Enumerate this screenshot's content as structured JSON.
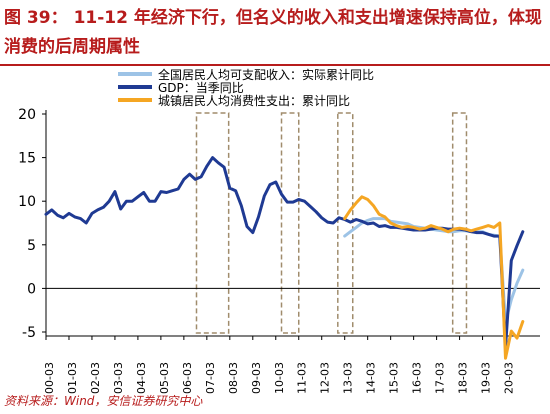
{
  "header": {
    "figure_label": "图 39：",
    "title": "11-12 年经济下行，但名义的收入和支出增速保持高位，体现消费的后周期属性"
  },
  "source": "资料来源：Wind，安信证券研究中心",
  "colors": {
    "income": "#9dc3e6",
    "gdp": "#1f3a93",
    "consumption": "#f5a623",
    "highlight_box": "#a08c6c",
    "title": "#b71c1c"
  },
  "chart_data": {
    "type": "line",
    "title": "",
    "xlabel": "",
    "ylabel": "",
    "ylim": [
      -5,
      20
    ],
    "yticks": [
      -5,
      0,
      5,
      10,
      15,
      20
    ],
    "xlim": [
      2000.0,
      2021.5
    ],
    "xticks": [
      "00-03",
      "01-03",
      "02-03",
      "03-03",
      "04-03",
      "05-03",
      "06-03",
      "07-03",
      "08-03",
      "09-03",
      "10-03",
      "11-03",
      "12-03",
      "13-03",
      "14-03",
      "15-03",
      "16-03",
      "17-03",
      "18-03",
      "19-03",
      "20-03"
    ],
    "grid": false,
    "legend_position": "top",
    "highlight_periods": [
      [
        2006.55,
        2007.95
      ],
      [
        2010.25,
        2011.0
      ],
      [
        2012.7,
        2013.35
      ],
      [
        2017.7,
        2018.3
      ]
    ],
    "series": [
      {
        "name": "全国居民人均可支配收入：实际累计同比",
        "color": "#9dc3e6",
        "points": [
          [
            2013.0,
            6.0
          ],
          [
            2013.25,
            6.5
          ],
          [
            2013.5,
            7.0
          ],
          [
            2013.75,
            7.5
          ],
          [
            2014.0,
            7.8
          ],
          [
            2014.25,
            8.0
          ],
          [
            2014.5,
            8.0
          ],
          [
            2014.75,
            8.0
          ],
          [
            2015.0,
            7.7
          ],
          [
            2015.25,
            7.6
          ],
          [
            2015.5,
            7.5
          ],
          [
            2015.75,
            7.4
          ],
          [
            2016.0,
            7.1
          ],
          [
            2016.25,
            7.0
          ],
          [
            2016.5,
            6.9
          ],
          [
            2016.75,
            6.8
          ],
          [
            2017.0,
            6.7
          ],
          [
            2017.25,
            6.6
          ],
          [
            2017.5,
            6.5
          ],
          [
            2017.75,
            6.5
          ],
          [
            2018.0,
            6.6
          ],
          [
            2018.25,
            6.6
          ],
          [
            2018.5,
            6.5
          ],
          [
            2018.75,
            6.5
          ],
          [
            2019.0,
            6.5
          ],
          [
            2019.25,
            6.2
          ],
          [
            2019.5,
            6.1
          ],
          [
            2019.75,
            6.0
          ],
          [
            2020.0,
            -3.9
          ],
          [
            2020.25,
            -1.3
          ],
          [
            2020.5,
            0.6
          ],
          [
            2020.75,
            2.1
          ]
        ]
      },
      {
        "name": "GDP：当季同比",
        "color": "#1f3a93",
        "points": [
          [
            2000.0,
            8.5
          ],
          [
            2000.25,
            9.0
          ],
          [
            2000.5,
            8.4
          ],
          [
            2000.75,
            8.1
          ],
          [
            2001.0,
            8.6
          ],
          [
            2001.25,
            8.2
          ],
          [
            2001.5,
            8.0
          ],
          [
            2001.75,
            7.5
          ],
          [
            2002.0,
            8.6
          ],
          [
            2002.25,
            9.0
          ],
          [
            2002.5,
            9.3
          ],
          [
            2002.75,
            10.0
          ],
          [
            2003.0,
            11.1
          ],
          [
            2003.25,
            9.1
          ],
          [
            2003.5,
            10.0
          ],
          [
            2003.75,
            10.0
          ],
          [
            2004.0,
            10.5
          ],
          [
            2004.25,
            11.0
          ],
          [
            2004.5,
            10.0
          ],
          [
            2004.75,
            10.0
          ],
          [
            2005.0,
            11.1
          ],
          [
            2005.25,
            11.0
          ],
          [
            2005.5,
            11.2
          ],
          [
            2005.75,
            11.4
          ],
          [
            2006.0,
            12.5
          ],
          [
            2006.25,
            13.1
          ],
          [
            2006.5,
            12.5
          ],
          [
            2006.75,
            12.8
          ],
          [
            2007.0,
            14.0
          ],
          [
            2007.25,
            15.0
          ],
          [
            2007.5,
            14.4
          ],
          [
            2007.75,
            13.9
          ],
          [
            2008.0,
            11.5
          ],
          [
            2008.25,
            11.2
          ],
          [
            2008.5,
            9.5
          ],
          [
            2008.75,
            7.1
          ],
          [
            2009.0,
            6.4
          ],
          [
            2009.25,
            8.2
          ],
          [
            2009.5,
            10.6
          ],
          [
            2009.75,
            11.9
          ],
          [
            2010.0,
            12.2
          ],
          [
            2010.25,
            10.8
          ],
          [
            2010.5,
            9.9
          ],
          [
            2010.75,
            9.9
          ],
          [
            2011.0,
            10.2
          ],
          [
            2011.25,
            10.0
          ],
          [
            2011.5,
            9.4
          ],
          [
            2011.75,
            8.8
          ],
          [
            2012.0,
            8.1
          ],
          [
            2012.25,
            7.6
          ],
          [
            2012.5,
            7.5
          ],
          [
            2012.75,
            8.1
          ],
          [
            2013.0,
            7.9
          ],
          [
            2013.25,
            7.6
          ],
          [
            2013.5,
            7.9
          ],
          [
            2013.75,
            7.7
          ],
          [
            2014.0,
            7.4
          ],
          [
            2014.25,
            7.5
          ],
          [
            2014.5,
            7.1
          ],
          [
            2014.75,
            7.2
          ],
          [
            2015.0,
            7.0
          ],
          [
            2015.25,
            7.0
          ],
          [
            2015.5,
            6.9
          ],
          [
            2015.75,
            6.8
          ],
          [
            2016.0,
            6.7
          ],
          [
            2016.25,
            6.7
          ],
          [
            2016.5,
            6.7
          ],
          [
            2016.75,
            6.8
          ],
          [
            2017.0,
            6.9
          ],
          [
            2017.25,
            6.9
          ],
          [
            2017.5,
            6.8
          ],
          [
            2017.75,
            6.8
          ],
          [
            2018.0,
            6.8
          ],
          [
            2018.25,
            6.7
          ],
          [
            2018.5,
            6.5
          ],
          [
            2018.75,
            6.4
          ],
          [
            2019.0,
            6.4
          ],
          [
            2019.25,
            6.2
          ],
          [
            2019.5,
            6.0
          ],
          [
            2019.75,
            6.0
          ],
          [
            2020.0,
            -6.8
          ],
          [
            2020.25,
            3.2
          ],
          [
            2020.5,
            4.9
          ],
          [
            2020.75,
            6.5
          ]
        ]
      },
      {
        "name": "城镇居民人均消费性支出：累计同比",
        "color": "#f5a623",
        "points": [
          [
            2013.0,
            8.0
          ],
          [
            2013.25,
            9.0
          ],
          [
            2013.5,
            9.8
          ],
          [
            2013.75,
            10.5
          ],
          [
            2014.0,
            10.2
          ],
          [
            2014.25,
            9.5
          ],
          [
            2014.5,
            8.5
          ],
          [
            2014.75,
            8.2
          ],
          [
            2015.0,
            7.5
          ],
          [
            2015.25,
            7.2
          ],
          [
            2015.5,
            7.0
          ],
          [
            2015.75,
            7.1
          ],
          [
            2016.0,
            7.0
          ],
          [
            2016.25,
            6.8
          ],
          [
            2016.5,
            6.9
          ],
          [
            2016.75,
            7.2
          ],
          [
            2017.0,
            7.0
          ],
          [
            2017.25,
            6.8
          ],
          [
            2017.5,
            6.5
          ],
          [
            2017.75,
            6.8
          ],
          [
            2018.0,
            6.9
          ],
          [
            2018.25,
            6.8
          ],
          [
            2018.5,
            6.6
          ],
          [
            2018.75,
            6.8
          ],
          [
            2019.0,
            7.0
          ],
          [
            2019.25,
            7.2
          ],
          [
            2019.5,
            7.0
          ],
          [
            2019.75,
            7.5
          ],
          [
            2020.0,
            -8.0
          ],
          [
            2020.25,
            -4.9
          ],
          [
            2020.5,
            -5.7
          ],
          [
            2020.75,
            -3.8
          ]
        ]
      }
    ]
  }
}
